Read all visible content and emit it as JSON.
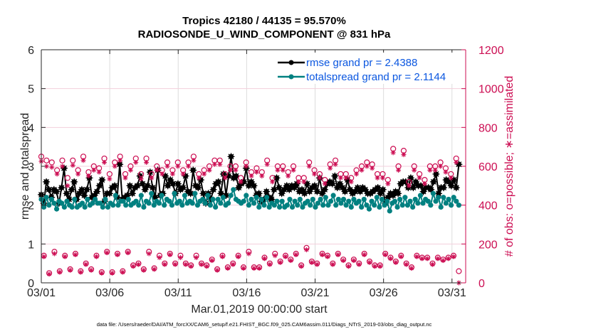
{
  "chart_data": {
    "type": "line",
    "title": [
      "Tropics 42180 / 44135 = 95.570%",
      "RADIOSONDE_U_WIND_COMPONENT @ 831 hPa"
    ],
    "xlabel": "Mar.01,2019 00:00:00 start",
    "ylabel": "rmse and totalspread",
    "y2label": "# of obs: o=possible; ∗=assimilated",
    "x_ticks": [
      "03/01",
      "03/06",
      "03/11",
      "03/16",
      "03/21",
      "03/26",
      "03/31"
    ],
    "x_tick_days": [
      0,
      5,
      10,
      15,
      20,
      25,
      30
    ],
    "xlim_days": [
      0,
      31
    ],
    "ylim": [
      0,
      6
    ],
    "y_ticks": [
      0,
      1,
      2,
      3,
      4,
      5,
      6
    ],
    "y2lim": [
      0,
      1200
    ],
    "y2_ticks": [
      0,
      200,
      400,
      600,
      800,
      1000,
      1200
    ],
    "grid": "vertical gray at x ticks; horizontal pink at y2 ticks",
    "legend_position": "top-right",
    "x_step_days": 0.5,
    "series": [
      {
        "name": "rmse grand pr = 2.4388",
        "axis": "left",
        "color": "#000000",
        "marker": "asterisk-dot",
        "values": [
          2.27,
          2.05,
          2.6,
          2.4,
          2.2,
          2.4,
          2.35,
          2.05,
          2.45,
          2.95,
          2.3,
          2.15,
          2.4,
          2.6,
          2.15,
          2.3,
          2.4,
          2.25,
          2.4,
          2.7,
          2.2,
          2.25,
          2.35,
          2.5,
          2.65,
          2.1,
          2.3,
          2.3,
          2.45,
          2.5,
          2.2,
          3.05,
          2.15,
          2.2,
          2.25,
          2.5,
          2.3,
          2.45,
          2.5,
          2.75,
          2.55,
          2.4,
          2.5,
          2.85,
          2.45,
          2.2,
          2.9,
          2.25,
          2.3,
          2.75,
          2.5,
          2.65,
          2.55,
          2.3,
          2.55,
          2.4,
          2.45,
          2.75,
          2.35,
          2.3,
          2.9,
          2.5,
          2.45,
          2.65,
          2.3,
          2.05,
          2.3,
          2.15,
          2.4,
          2.55,
          2.6,
          2.3,
          2.8,
          2.25,
          2.75,
          3.25,
          2.7,
          2.75,
          2.45,
          2.55,
          2.6,
          2.95,
          2.5,
          2.6,
          2.5,
          2.25,
          2.3,
          2.1,
          2.15,
          2.35,
          2.2,
          2.15,
          2.4,
          2.7,
          2.45,
          2.3,
          2.4,
          2.5,
          2.4,
          2.5,
          2.45,
          2.55,
          2.35,
          2.4,
          2.3,
          2.55,
          2.35,
          2.45,
          2.5,
          2.35,
          2.7,
          2.3,
          2.4,
          2.55,
          2.6,
          2.55,
          2.75,
          2.45,
          2.55,
          2.45,
          2.35,
          2.65,
          2.4,
          2.3,
          2.35,
          2.45,
          2.35,
          2.45,
          2.4,
          2.3,
          2.3,
          2.35,
          2.4,
          2.45,
          2.3,
          2.4,
          2.05,
          2.2,
          2.3,
          2.25,
          2.35,
          2.3,
          2.55,
          2.6,
          2.6,
          2.45,
          2.7,
          2.45,
          2.6,
          2.5,
          2.5,
          2.35,
          2.45,
          2.45,
          2.4,
          2.6,
          2.8,
          2.3,
          2.45,
          2.45,
          2.65,
          2.6,
          2.5,
          2.65,
          2.45,
          3.05
        ]
      },
      {
        "name": "totalspread grand pr = 2.1144",
        "axis": "left",
        "color": "#008080",
        "marker": "dot",
        "values": [
          2.15,
          1.95,
          2.2,
          2.0,
          2.15,
          2.05,
          1.9,
          2.1,
          2.05,
          1.95,
          2.1,
          2.0,
          1.95,
          2.15,
          1.95,
          2.0,
          2.05,
          1.95,
          2.15,
          2.0,
          2.05,
          2.15,
          2.05,
          2.05,
          1.95,
          2.15,
          1.95,
          2.05,
          2.0,
          2.25,
          2.0,
          2.1,
          2.1,
          2.0,
          2.15,
          2.0,
          2.05,
          2.1,
          2.0,
          2.25,
          1.95,
          2.1,
          2.05,
          2.3,
          2.0,
          2.1,
          2.05,
          2.25,
          2.0,
          2.15,
          2.1,
          2.0,
          2.3,
          2.05,
          2.1,
          2.0,
          2.25,
          2.05,
          2.1,
          2.05,
          2.3,
          2.0,
          2.1,
          2.15,
          2.05,
          2.25,
          2.0,
          2.15,
          1.95,
          2.15,
          2.05,
          2.2,
          2.0,
          2.05,
          2.25,
          2.4,
          2.15,
          2.1,
          2.05,
          2.1,
          2.25,
          2.0,
          2.15,
          2.05,
          2.2,
          1.95,
          2.15,
          2.0,
          2.2,
          1.95,
          2.05,
          2.0,
          2.1,
          1.95,
          2.1,
          1.95,
          2.0,
          2.15,
          1.95,
          2.1,
          2.0,
          2.15,
          1.95,
          2.05,
          2.1,
          2.0,
          2.15,
          1.95,
          2.05,
          2.15,
          2.0,
          2.2,
          2.0,
          2.1,
          2.25,
          2.0,
          2.15,
          2.05,
          2.15,
          2.0,
          2.1,
          1.95,
          2.15,
          2.05,
          2.1,
          1.95,
          2.15,
          2.0,
          1.9,
          2.1,
          2.0,
          2.2,
          1.95,
          2.15,
          2.0,
          2.1,
          1.85,
          2.05,
          2.1,
          1.95,
          2.15,
          2.0,
          2.2,
          2.0,
          2.1,
          1.95,
          2.15,
          2.05,
          2.25,
          2.05,
          2.15,
          2.1,
          2.0,
          2.3,
          2.1,
          2.2,
          1.95,
          2.2,
          2.05,
          2.15,
          2.0,
          2.2,
          2.1,
          2.0
        ]
      },
      {
        "name": "obs possible (o)",
        "axis": "right",
        "color": "#cc0d52",
        "marker": "circle",
        "values": [
          650,
          140,
          630,
          50,
          620,
          160,
          580,
          60,
          630,
          140,
          540,
          70,
          630,
          150,
          580,
          60,
          650,
          100,
          570,
          70,
          600,
          140,
          590,
          55,
          640,
          160,
          560,
          55,
          620,
          150,
          650,
          60,
          560,
          160,
          600,
          90,
          640,
          100,
          560,
          70,
          640,
          160,
          560,
          75,
          600,
          140,
          580,
          100,
          620,
          150,
          580,
          100,
          620,
          140,
          580,
          100,
          620,
          90,
          650,
          140,
          560,
          100,
          580,
          90,
          600,
          120,
          630,
          70,
          630,
          140,
          560,
          80,
          600,
          100,
          600,
          140,
          540,
          80,
          620,
          160,
          570,
          80,
          590,
          80,
          570,
          130,
          630,
          100,
          540,
          150,
          600,
          110,
          600,
          140,
          570,
          120,
          600,
          150,
          540,
          90,
          540,
          180,
          620,
          110,
          580,
          100,
          560,
          150,
          530,
          140,
          610,
          100,
          630,
          150,
          560,
          120,
          560,
          90,
          540,
          120,
          580,
          100,
          600,
          150,
          620,
          110,
          610,
          90,
          560,
          90,
          560,
          150,
          530,
          130,
          690,
          110,
          600,
          140,
          680,
          100,
          520,
          80,
          600,
          140,
          560,
          130,
          530,
          130,
          600,
          100,
          600,
          130,
          620,
          120,
          590,
          130,
          560,
          140,
          640,
          60
        ]
      },
      {
        "name": "obs assimilated (∗)",
        "axis": "right",
        "color": "#cc0d52",
        "marker": "asterisk",
        "values": [
          625,
          135,
          600,
          45,
          595,
          150,
          560,
          55,
          600,
          135,
          500,
          65,
          605,
          145,
          560,
          55,
          630,
          95,
          550,
          65,
          580,
          135,
          570,
          50,
          620,
          155,
          535,
          50,
          600,
          145,
          630,
          55,
          540,
          155,
          580,
          85,
          620,
          95,
          535,
          65,
          620,
          150,
          540,
          70,
          580,
          130,
          560,
          95,
          600,
          145,
          560,
          95,
          600,
          130,
          560,
          95,
          600,
          85,
          630,
          130,
          540,
          95,
          560,
          85,
          580,
          115,
          610,
          65,
          610,
          135,
          540,
          75,
          580,
          95,
          580,
          135,
          520,
          75,
          600,
          150,
          550,
          75,
          570,
          75,
          550,
          125,
          610,
          95,
          520,
          140,
          580,
          105,
          580,
          135,
          550,
          115,
          580,
          145,
          520,
          85,
          520,
          170,
          600,
          105,
          560,
          95,
          540,
          145,
          510,
          135,
          590,
          95,
          610,
          145,
          540,
          115,
          540,
          85,
          520,
          115,
          560,
          95,
          580,
          145,
          600,
          105,
          590,
          85,
          540,
          85,
          540,
          145,
          510,
          125,
          670,
          105,
          580,
          135,
          660,
          95,
          500,
          75,
          580,
          135,
          540,
          125,
          510,
          125,
          580,
          95,
          580,
          125,
          600,
          115,
          570,
          125,
          540,
          135,
          620,
          0
        ]
      }
    ]
  },
  "footer": {
    "data_file": "data file: /Users/raeder/DAI/ATM_forcXX/CAM6_setup/f.e21.FHIST_BGC.f09_025.CAM6assim.011/Diags_NTrS_2019-03/obs_diag_output.nc"
  },
  "legend": {
    "rmse_label": "rmse grand pr = 2.4388",
    "spread_label": "totalspread grand pr = 2.1144"
  }
}
